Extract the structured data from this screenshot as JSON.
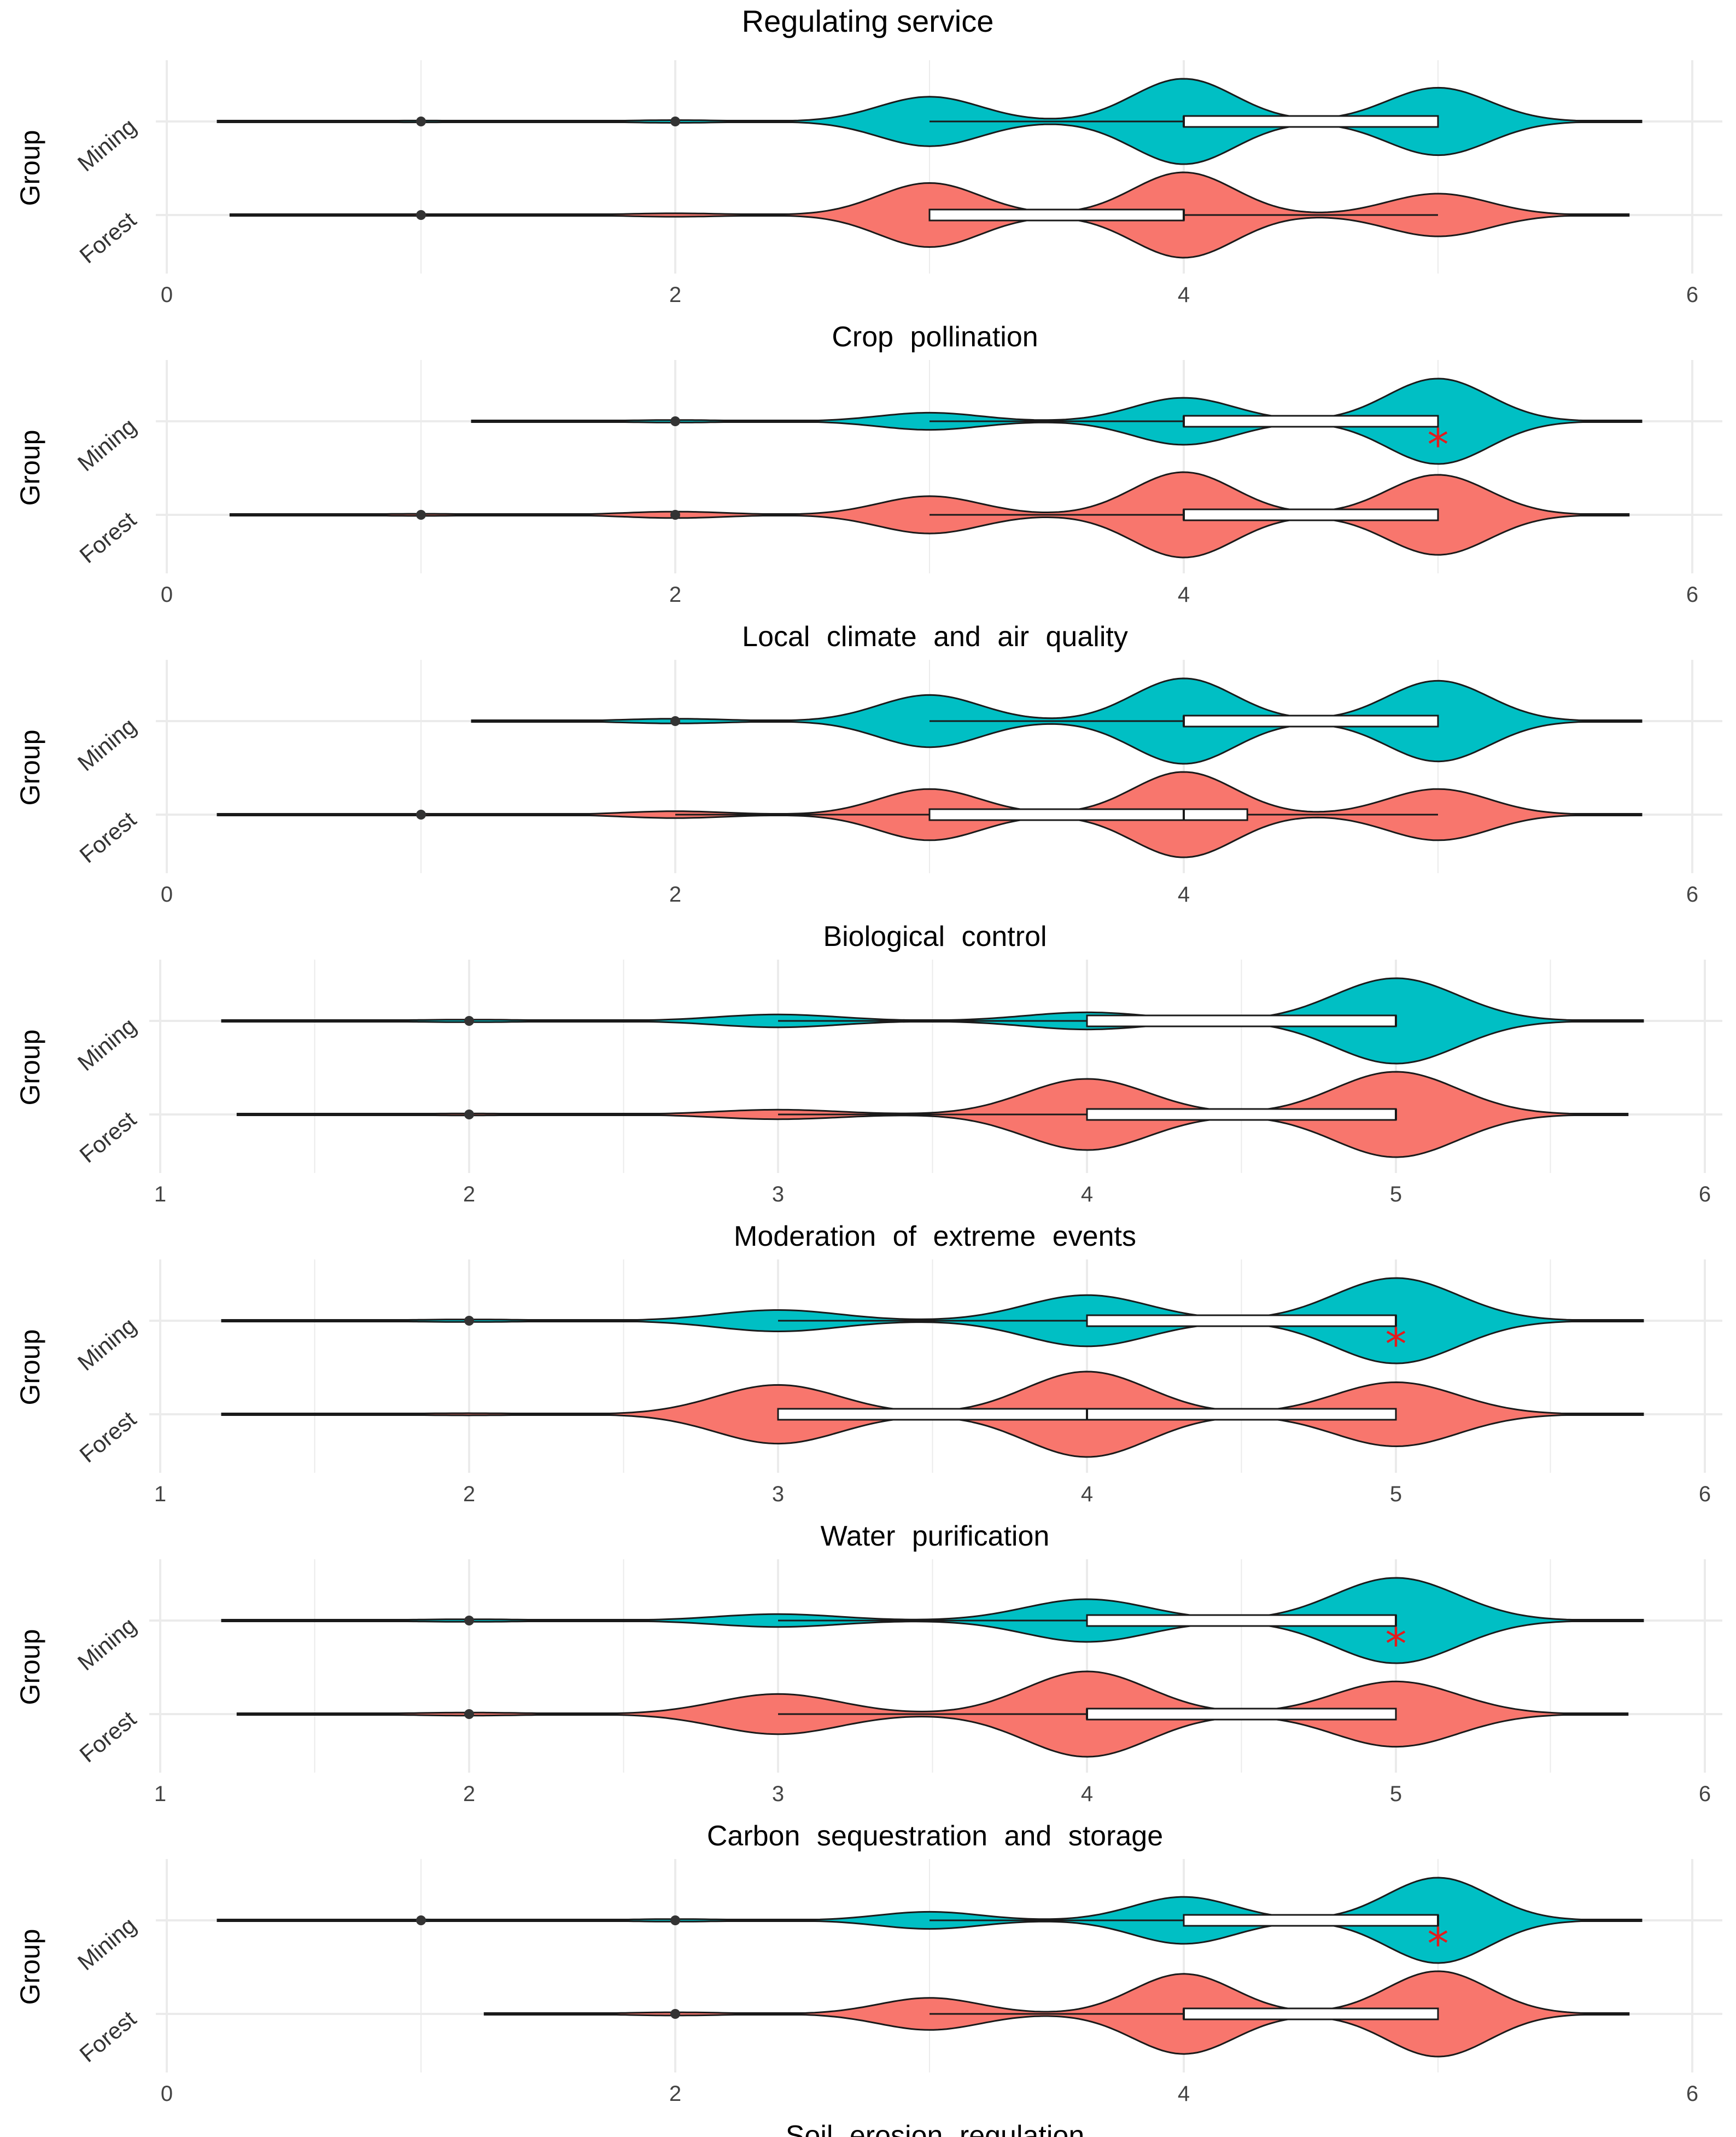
{
  "figure_title": "Regulating service",
  "colors": {
    "Mining": "#00BFC4",
    "Forest": "#F8766D",
    "outline": "#1a1a1a",
    "star": "#E31A1C",
    "grid": "#EBEBEB"
  },
  "chart_data": [
    {
      "type": "violin",
      "xlabel": "Crop pollination",
      "ylabel": "Group",
      "xlim": [
        0,
        6
      ],
      "ticks": [
        0,
        2,
        4,
        6
      ],
      "categories": [
        "Mining",
        "Forest"
      ],
      "series": [
        {
          "name": "Mining",
          "range": [
            0.2,
            5.8
          ],
          "peaks": [
            [
              1,
              0.02
            ],
            [
              2,
              0.03
            ],
            [
              3,
              0.55
            ],
            [
              4,
              0.95
            ],
            [
              5,
              0.75
            ]
          ],
          "box": [
            4,
            5
          ],
          "median": 4,
          "whisker": [
            3,
            5
          ],
          "outliers": [
            1,
            2
          ],
          "significant": false
        },
        {
          "name": "Forest",
          "range": [
            0.25,
            5.75
          ],
          "peaks": [
            [
              1,
              0.02
            ],
            [
              2,
              0.04
            ],
            [
              3,
              0.75
            ],
            [
              4,
              1.0
            ],
            [
              5,
              0.5
            ]
          ],
          "box": [
            3,
            4
          ],
          "median": 4,
          "whisker": [
            3,
            5
          ],
          "outliers": [
            1
          ],
          "significant": false
        }
      ]
    },
    {
      "type": "violin",
      "xlabel": "Local climate and air quality",
      "ylabel": "Group",
      "xlim": [
        0,
        6
      ],
      "ticks": [
        0,
        2,
        4,
        6
      ],
      "categories": [
        "Mining",
        "Forest"
      ],
      "series": [
        {
          "name": "Mining",
          "range": [
            1.2,
            5.8
          ],
          "peaks": [
            [
              2,
              0.03
            ],
            [
              3,
              0.2
            ],
            [
              4,
              0.55
            ],
            [
              5,
              1.0
            ]
          ],
          "box": [
            4,
            5
          ],
          "median": 4,
          "whisker": [
            3,
            5
          ],
          "outliers": [
            2
          ],
          "significant": true
        },
        {
          "name": "Forest",
          "range": [
            0.25,
            5.75
          ],
          "peaks": [
            [
              1,
              0.02
            ],
            [
              2,
              0.06
            ],
            [
              3,
              0.35
            ],
            [
              4,
              0.8
            ],
            [
              5,
              0.75
            ]
          ],
          "box": [
            4,
            5
          ],
          "median": 4,
          "whisker": [
            3,
            5
          ],
          "outliers": [
            1,
            2
          ],
          "significant": false
        }
      ]
    },
    {
      "type": "violin",
      "xlabel": "Biological control",
      "ylabel": "Group",
      "xlim": [
        0,
        6
      ],
      "ticks": [
        0,
        2,
        4,
        6
      ],
      "categories": [
        "Mining",
        "Forest"
      ],
      "series": [
        {
          "name": "Mining",
          "range": [
            1.2,
            5.8
          ],
          "peaks": [
            [
              2,
              0.05
            ],
            [
              3,
              0.55
            ],
            [
              4,
              0.9
            ],
            [
              5,
              0.85
            ]
          ],
          "box": [
            4,
            5
          ],
          "median": 4,
          "whisker": [
            3,
            5
          ],
          "outliers": [
            2
          ],
          "significant": false
        },
        {
          "name": "Forest",
          "range": [
            0.2,
            5.8
          ],
          "peaks": [
            [
              1,
              0.02
            ],
            [
              2,
              0.08
            ],
            [
              3,
              0.6
            ],
            [
              4,
              1.0
            ],
            [
              5,
              0.6
            ]
          ],
          "box": [
            3,
            4.25
          ],
          "median": 4,
          "whisker": [
            2,
            5
          ],
          "outliers": [
            1
          ],
          "significant": false
        }
      ]
    },
    {
      "type": "violin",
      "xlabel": "Moderation of extreme events",
      "ylabel": "Group",
      "xlim": [
        1,
        6
      ],
      "ticks": [
        1,
        2,
        3,
        4,
        5,
        6
      ],
      "categories": [
        "Mining",
        "Forest"
      ],
      "series": [
        {
          "name": "Mining",
          "range": [
            1.2,
            5.8
          ],
          "peaks": [
            [
              2,
              0.03
            ],
            [
              3,
              0.15
            ],
            [
              4,
              0.2
            ],
            [
              5,
              1.0
            ]
          ],
          "box": [
            4,
            5
          ],
          "median": 5,
          "whisker": [
            3,
            5
          ],
          "outliers": [
            2
          ],
          "significant": false
        },
        {
          "name": "Forest",
          "range": [
            1.25,
            5.75
          ],
          "peaks": [
            [
              2,
              0.02
            ],
            [
              3,
              0.1
            ],
            [
              4,
              0.75
            ],
            [
              5,
              0.9
            ]
          ],
          "box": [
            4,
            5
          ],
          "median": 5,
          "whisker": [
            3,
            5
          ],
          "outliers": [
            2
          ],
          "significant": false
        }
      ]
    },
    {
      "type": "violin",
      "xlabel": "Water purification",
      "ylabel": "Group",
      "xlim": [
        1,
        6
      ],
      "ticks": [
        1,
        2,
        3,
        4,
        5,
        6
      ],
      "categories": [
        "Mining",
        "Forest"
      ],
      "series": [
        {
          "name": "Mining",
          "range": [
            1.2,
            5.8
          ],
          "peaks": [
            [
              2,
              0.03
            ],
            [
              3,
              0.25
            ],
            [
              4,
              0.6
            ],
            [
              5,
              1.0
            ]
          ],
          "box": [
            4,
            5
          ],
          "median": 5,
          "whisker": [
            3,
            5
          ],
          "outliers": [
            2
          ],
          "significant": true
        },
        {
          "name": "Forest",
          "range": [
            1.2,
            5.8
          ],
          "peaks": [
            [
              2,
              0.02
            ],
            [
              3,
              0.55
            ],
            [
              4,
              0.8
            ],
            [
              5,
              0.6
            ]
          ],
          "box": [
            3,
            5
          ],
          "median": 4,
          "whisker": [
            3,
            5
          ],
          "outliers": [],
          "significant": false
        }
      ]
    },
    {
      "type": "violin",
      "xlabel": "Carbon sequestration and storage",
      "ylabel": "Group",
      "xlim": [
        1,
        6
      ],
      "ticks": [
        1,
        2,
        3,
        4,
        5,
        6
      ],
      "categories": [
        "Mining",
        "Forest"
      ],
      "series": [
        {
          "name": "Mining",
          "range": [
            1.2,
            5.8
          ],
          "peaks": [
            [
              2,
              0.03
            ],
            [
              3,
              0.15
            ],
            [
              4,
              0.5
            ],
            [
              5,
              1.0
            ]
          ],
          "box": [
            4,
            5
          ],
          "median": 5,
          "whisker": [
            3,
            5
          ],
          "outliers": [
            2
          ],
          "significant": true
        },
        {
          "name": "Forest",
          "range": [
            1.25,
            5.75
          ],
          "peaks": [
            [
              2,
              0.03
            ],
            [
              3,
              0.4
            ],
            [
              4,
              0.85
            ],
            [
              5,
              0.65
            ]
          ],
          "box": [
            4,
            5
          ],
          "median": 4,
          "whisker": [
            3,
            5
          ],
          "outliers": [
            2
          ],
          "significant": false
        }
      ]
    },
    {
      "type": "violin",
      "xlabel": "Soil erosion regulation",
      "ylabel": "Group",
      "xlim": [
        0,
        6
      ],
      "ticks": [
        0,
        2,
        4,
        6
      ],
      "categories": [
        "Mining",
        "Forest"
      ],
      "series": [
        {
          "name": "Mining",
          "range": [
            0.2,
            5.8
          ],
          "peaks": [
            [
              1,
              0.02
            ],
            [
              2,
              0.03
            ],
            [
              3,
              0.2
            ],
            [
              4,
              0.55
            ],
            [
              5,
              1.0
            ]
          ],
          "box": [
            4,
            5
          ],
          "median": 5,
          "whisker": [
            3,
            5
          ],
          "outliers": [
            1,
            2
          ],
          "significant": true
        },
        {
          "name": "Forest",
          "range": [
            1.25,
            5.75
          ],
          "peaks": [
            [
              2,
              0.03
            ],
            [
              3,
              0.3
            ],
            [
              4,
              0.75
            ],
            [
              5,
              0.8
            ]
          ],
          "box": [
            4,
            5
          ],
          "median": 4,
          "whisker": [
            3,
            5
          ],
          "outliers": [
            2
          ],
          "significant": false
        }
      ]
    }
  ]
}
